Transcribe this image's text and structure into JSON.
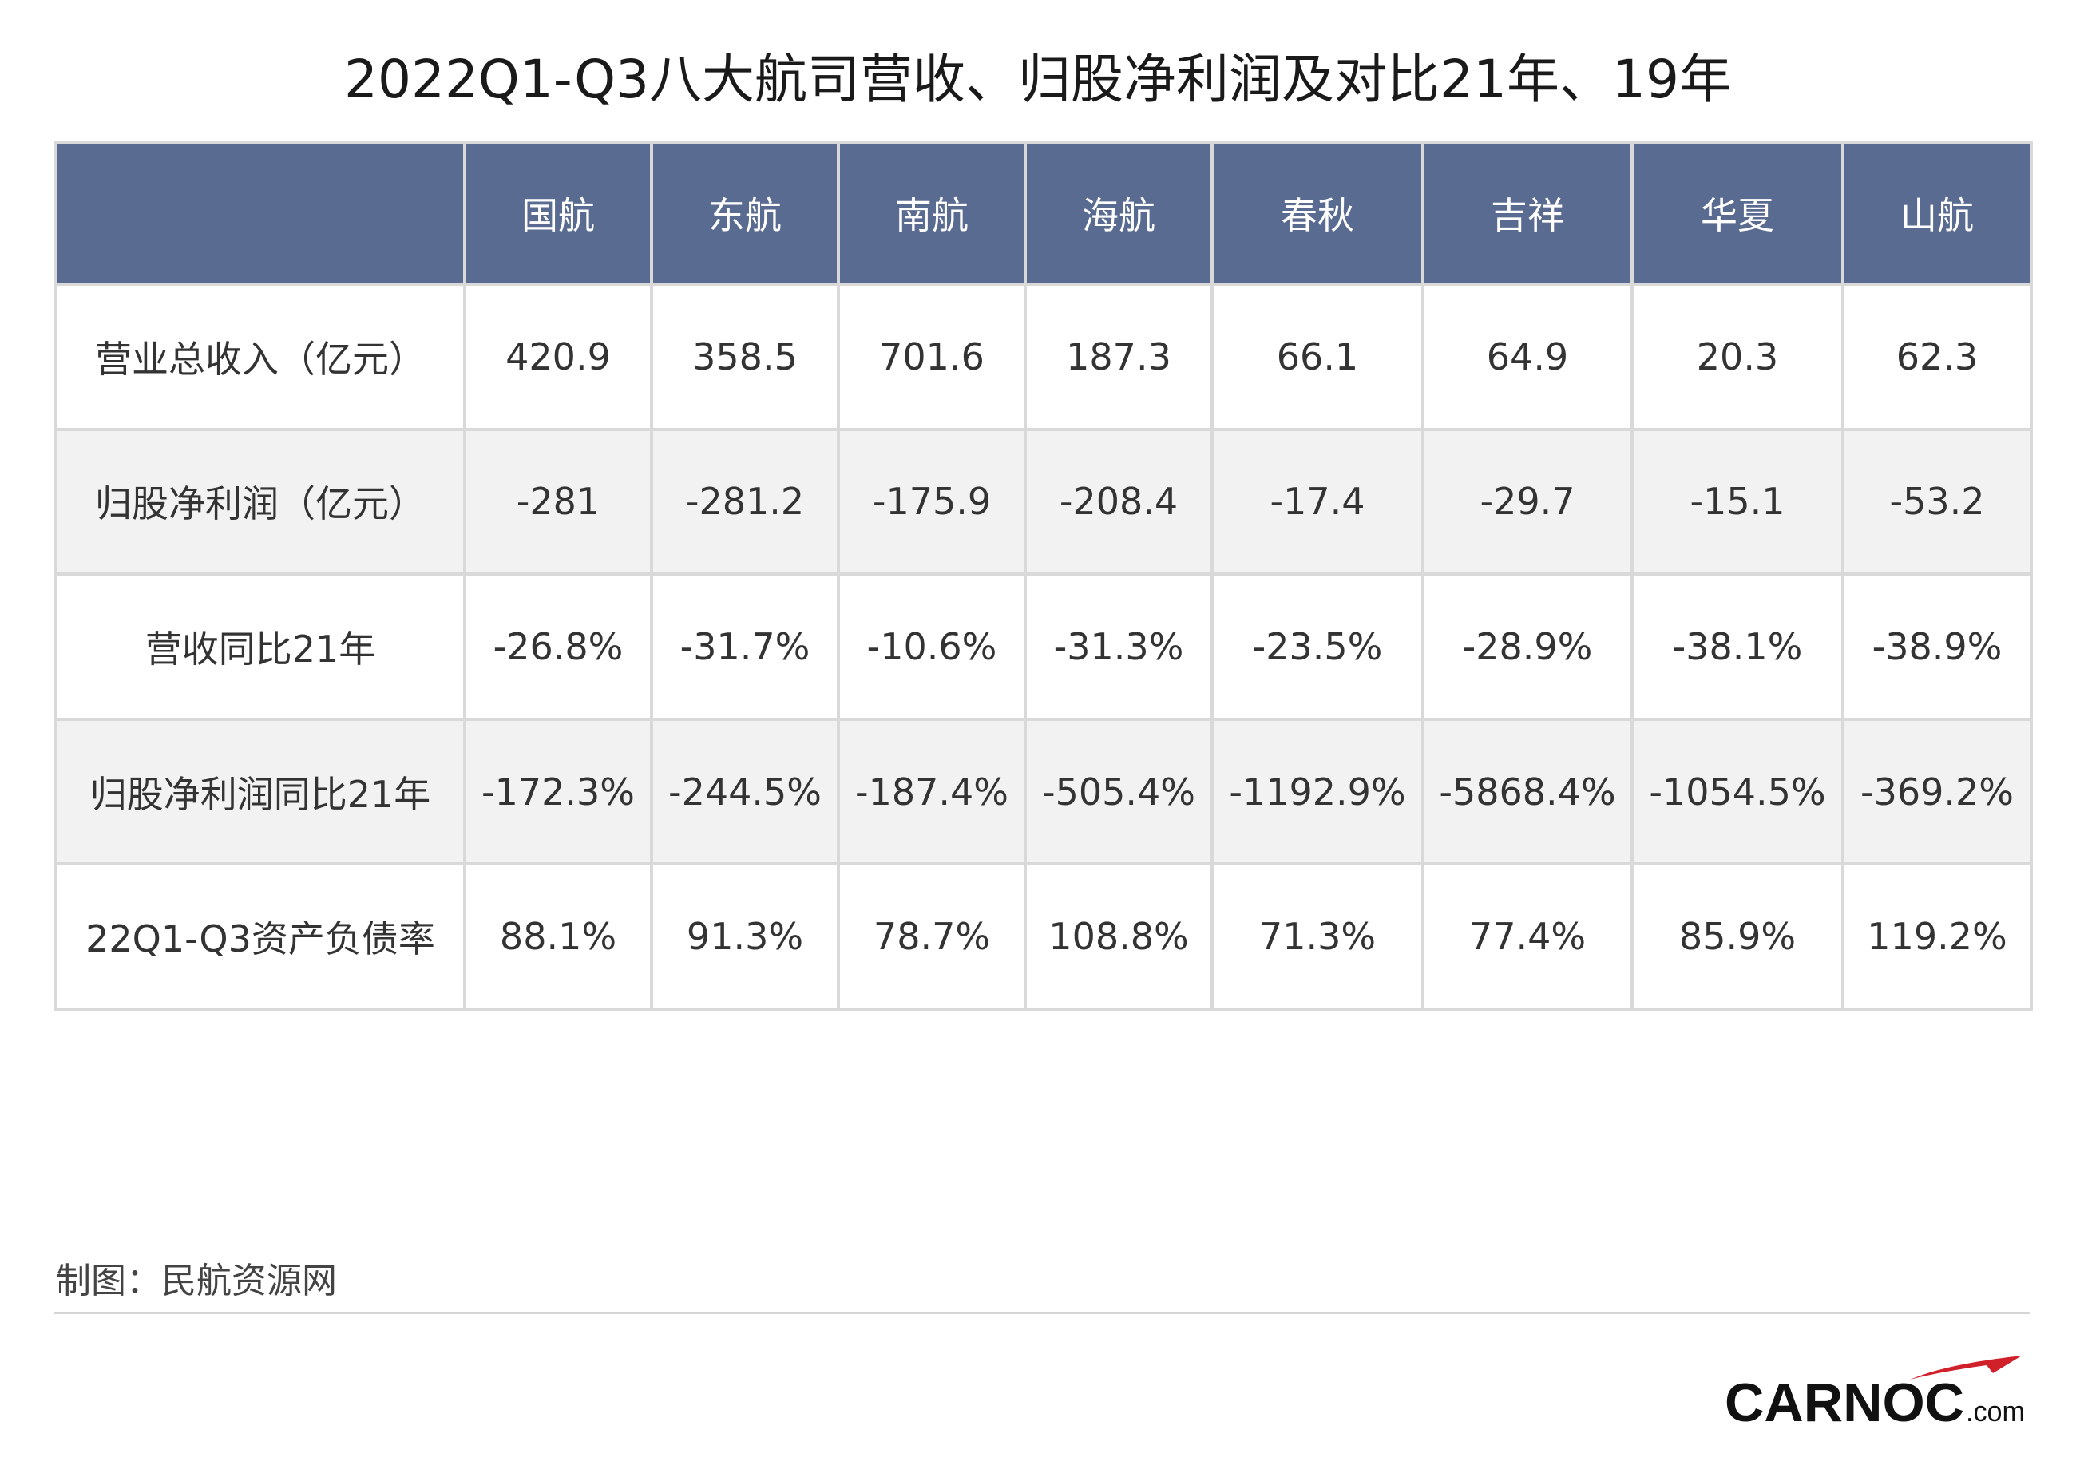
{
  "title": "2022Q1-Q3八大航司营收、归股净利润及对比21年、19年",
  "source": "制图：民航资源网",
  "logo": {
    "main": "CARNOC",
    "suffix": ".com",
    "accent_color": "#d0202a"
  },
  "colors": {
    "header_bg": "#596b91",
    "header_text": "#ffffff",
    "stripe": "#f2f2f2",
    "border": "#d9d9d9"
  },
  "chart_data": {
    "type": "table",
    "columns": [
      "",
      "国航",
      "东航",
      "南航",
      "海航",
      "春秋",
      "吉祥",
      "华夏",
      "山航"
    ],
    "rows": [
      {
        "label": "营业总收入（亿元）",
        "values": [
          "420.9",
          "358.5",
          "701.6",
          "187.3",
          "66.1",
          "64.9",
          "20.3",
          "62.3"
        ]
      },
      {
        "label": "归股净利润（亿元）",
        "values": [
          "-281",
          "-281.2",
          "-175.9",
          "-208.4",
          "-17.4",
          "-29.7",
          "-15.1",
          "-53.2"
        ]
      },
      {
        "label": "营收同比21年",
        "values": [
          "-26.8%",
          "-31.7%",
          "-10.6%",
          "-31.3%",
          "-23.5%",
          "-28.9%",
          "-38.1%",
          "-38.9%"
        ]
      },
      {
        "label": "归股净利润同比21年",
        "values": [
          "-172.3%",
          "-244.5%",
          "-187.4%",
          "-505.4%",
          "-1192.9%",
          "-5868.4%",
          "-1054.5%",
          "-369.2%"
        ]
      },
      {
        "label": "22Q1-Q3资产负债率",
        "values": [
          "88.1%",
          "91.3%",
          "78.7%",
          "108.8%",
          "71.3%",
          "77.4%",
          "85.9%",
          "119.2%"
        ]
      }
    ]
  }
}
